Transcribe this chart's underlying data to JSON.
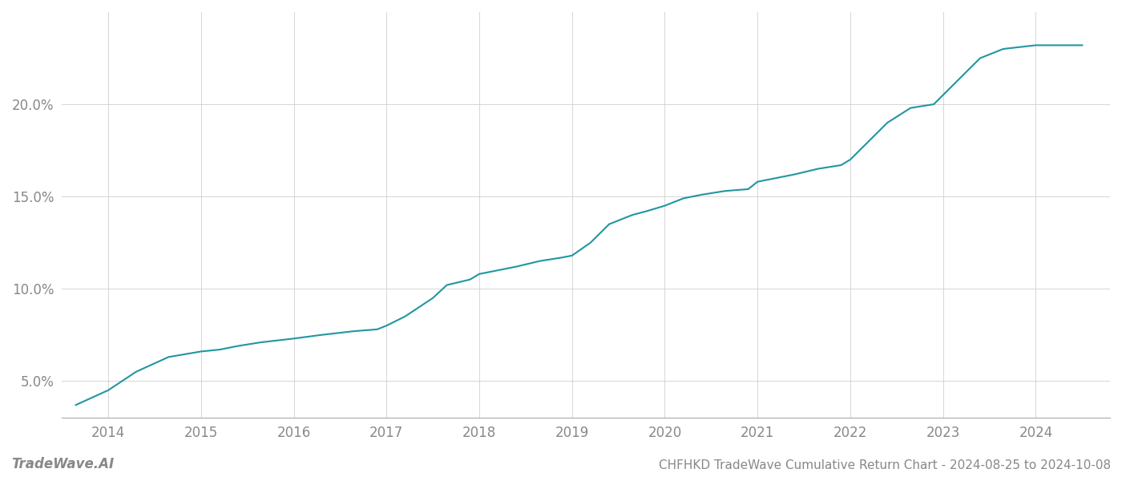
{
  "title": "CHFHKD TradeWave Cumulative Return Chart - 2024-08-25 to 2024-10-08",
  "watermark": "TradeWave.AI",
  "line_color": "#2196a0",
  "background_color": "#ffffff",
  "grid_color": "#cccccc",
  "x_years": [
    2014,
    2015,
    2016,
    2017,
    2018,
    2019,
    2020,
    2021,
    2022,
    2023,
    2024
  ],
  "x_values": [
    2013.65,
    2014.0,
    2014.3,
    2014.65,
    2015.0,
    2015.2,
    2015.4,
    2015.65,
    2016.0,
    2016.3,
    2016.65,
    2016.9,
    2017.0,
    2017.2,
    2017.5,
    2017.65,
    2017.9,
    2018.0,
    2018.2,
    2018.4,
    2018.65,
    2018.9,
    2019.0,
    2019.2,
    2019.4,
    2019.6,
    2019.65,
    2019.8,
    2020.0,
    2020.2,
    2020.4,
    2020.65,
    2020.9,
    2021.0,
    2021.2,
    2021.4,
    2021.65,
    2021.9,
    2022.0,
    2022.2,
    2022.4,
    2022.65,
    2022.9,
    2023.0,
    2023.2,
    2023.4,
    2023.65,
    2024.0,
    2024.5
  ],
  "y_values": [
    3.7,
    4.5,
    5.5,
    6.3,
    6.6,
    6.7,
    6.9,
    7.1,
    7.3,
    7.5,
    7.7,
    7.8,
    8.0,
    8.5,
    9.5,
    10.2,
    10.5,
    10.8,
    11.0,
    11.2,
    11.5,
    11.7,
    11.8,
    12.5,
    13.5,
    13.9,
    14.0,
    14.2,
    14.5,
    14.9,
    15.1,
    15.3,
    15.4,
    15.8,
    16.0,
    16.2,
    16.5,
    16.7,
    17.0,
    18.0,
    19.0,
    19.8,
    20.0,
    20.5,
    21.5,
    22.5,
    23.0,
    23.2,
    23.2
  ],
  "yticks": [
    5.0,
    10.0,
    15.0,
    20.0
  ],
  "ylim": [
    3.0,
    25.0
  ],
  "xlim": [
    2013.5,
    2024.8
  ],
  "title_fontsize": 11,
  "watermark_fontsize": 12,
  "tick_fontsize": 12,
  "line_width": 1.5
}
